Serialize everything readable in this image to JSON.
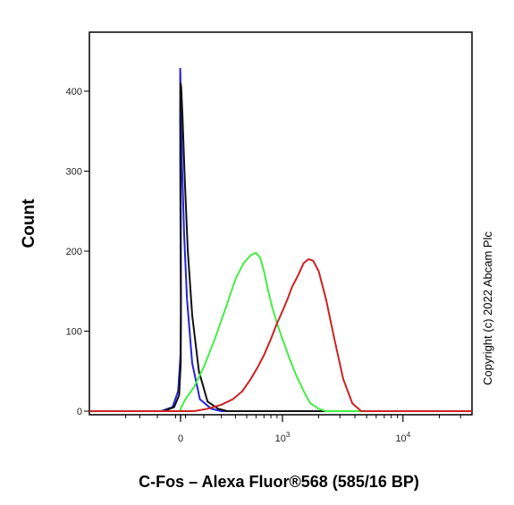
{
  "chart_data": {
    "type": "line",
    "xlabel": "C-Fos – Alexa Fluor®568 (585/16 BP)",
    "ylabel": "Count",
    "x_scale": "biexponential",
    "x_ticks": [
      {
        "value": 0,
        "label": "0"
      },
      {
        "value": 1000,
        "label": "10",
        "sup": "3"
      },
      {
        "value": 10000,
        "label": "10",
        "sup": "4"
      }
    ],
    "y_ticks": [
      0,
      100,
      200,
      300,
      400
    ],
    "ylim": [
      0,
      470
    ],
    "grid": false,
    "series": [
      {
        "color": "#2222dd",
        "x": [
          -180,
          -120,
          -80,
          -50,
          -30,
          -15,
          0,
          10,
          20,
          30,
          40,
          55,
          70,
          90,
          110,
          140,
          180,
          240,
          300
        ],
        "y": [
          0,
          5,
          25,
          70,
          140,
          240,
          330,
          380,
          410,
          428,
          420,
          380,
          310,
          220,
          140,
          60,
          15,
          3,
          0
        ]
      },
      {
        "color": "#111111",
        "x": [
          -170,
          -110,
          -70,
          -40,
          -20,
          0,
          15,
          30,
          40,
          50,
          60,
          75,
          95,
          115,
          140,
          175,
          220,
          280,
          340
        ],
        "y": [
          0,
          5,
          20,
          60,
          120,
          220,
          300,
          370,
          400,
          410,
          405,
          370,
          290,
          200,
          120,
          50,
          12,
          3,
          0
        ]
      },
      {
        "color": "#44ee44",
        "x": [
          20,
          60,
          100,
          150,
          200,
          260,
          330,
          400,
          470,
          540,
          600,
          650,
          700,
          760,
          820,
          900,
          1000,
          1150,
          1300,
          1500,
          1700,
          2000,
          2300
        ],
        "y": [
          0,
          5,
          15,
          30,
          55,
          90,
          130,
          165,
          185,
          195,
          198,
          192,
          175,
          150,
          130,
          110,
          90,
          65,
          45,
          25,
          10,
          3,
          0
        ]
      },
      {
        "color": "#cc2222",
        "x": [
          150,
          220,
          300,
          380,
          460,
          540,
          620,
          700,
          800,
          900,
          1000,
          1100,
          1200,
          1350,
          1500,
          1650,
          1800,
          2000,
          2300,
          2700,
          3200,
          3800,
          4500
        ],
        "y": [
          0,
          3,
          8,
          15,
          25,
          40,
          55,
          70,
          90,
          110,
          125,
          140,
          155,
          170,
          185,
          190,
          188,
          175,
          140,
          90,
          40,
          10,
          0
        ]
      }
    ],
    "annotations": [
      "Copyright (c) 2022 Abcam Plc"
    ]
  }
}
